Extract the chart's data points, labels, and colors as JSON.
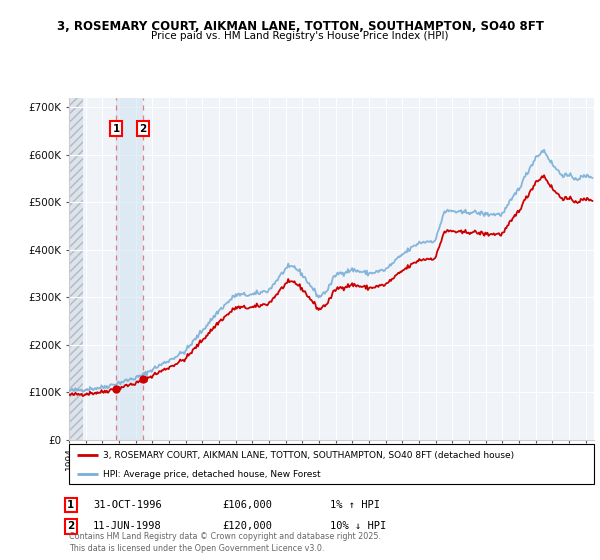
{
  "title_line1": "3, ROSEMARY COURT, AIKMAN LANE, TOTTON, SOUTHAMPTON, SO40 8FT",
  "title_line2": "Price paid vs. HM Land Registry's House Price Index (HPI)",
  "hpi_color": "#7aaed6",
  "price_color": "#cc0000",
  "sale1_date_x": 1996.83,
  "sale1_price": 106000,
  "sale2_date_x": 1998.44,
  "sale2_price": 120000,
  "sale1_text": "31-OCT-1996",
  "sale1_amount": "£106,000",
  "sale1_hpi": "1% ↑ HPI",
  "sale2_text": "11-JUN-1998",
  "sale2_amount": "£120,000",
  "sale2_hpi": "10% ↓ HPI",
  "legend_line1": "3, ROSEMARY COURT, AIKMAN LANE, TOTTON, SOUTHAMPTON, SO40 8FT (detached house)",
  "legend_line2": "HPI: Average price, detached house, New Forest",
  "footer": "Contains HM Land Registry data © Crown copyright and database right 2025.\nThis data is licensed under the Open Government Licence v3.0.",
  "xmin": 1994.0,
  "xmax": 2025.5,
  "ymin": 0,
  "ymax": 720000,
  "hatch_xmax": 1994.83
}
